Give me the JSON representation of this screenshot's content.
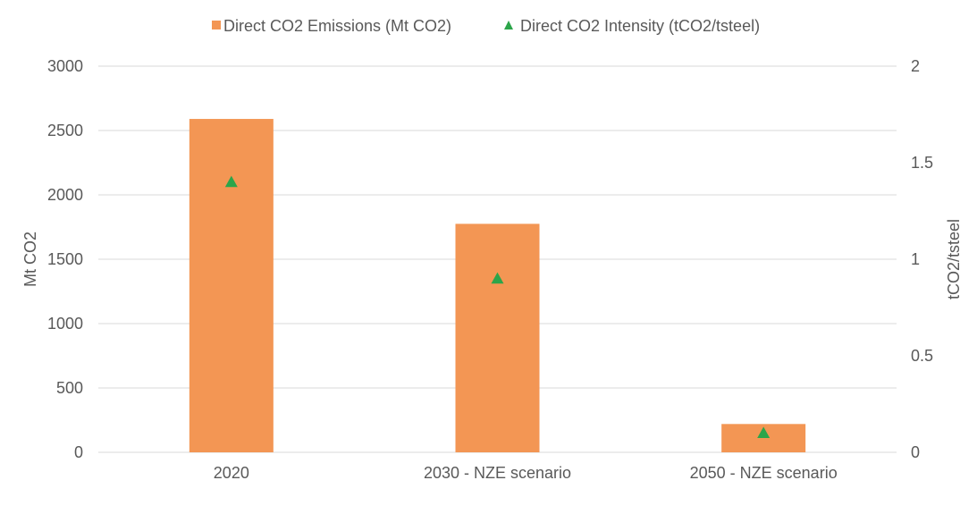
{
  "chart_data": {
    "type": "bar",
    "categories": [
      "2020",
      "2030 - NZE scenario",
      "2050 - NZE scenario"
    ],
    "series": [
      {
        "name": "Direct CO2 Emissions (Mt CO2)",
        "kind": "bar",
        "axis": "left",
        "color": "#f39654",
        "values": [
          2590,
          1775,
          220
        ]
      },
      {
        "name": "Direct CO2 Intensity (tCO2/tsteel)",
        "kind": "marker-triangle",
        "axis": "right",
        "color": "#2ca54a",
        "values": [
          1.4,
          0.9,
          0.1
        ]
      }
    ],
    "ylabel": "Mt CO2",
    "y2label": "tCO2/tsteel",
    "ylim": [
      0,
      3000
    ],
    "y2lim": [
      0,
      2
    ],
    "yticks": [
      "0",
      "500",
      "1000",
      "1500",
      "2000",
      "2500",
      "3000"
    ],
    "y2ticks": [
      "0",
      "0.5",
      "1",
      "1.5",
      "2"
    ],
    "grid": true,
    "legend_position": "top"
  }
}
